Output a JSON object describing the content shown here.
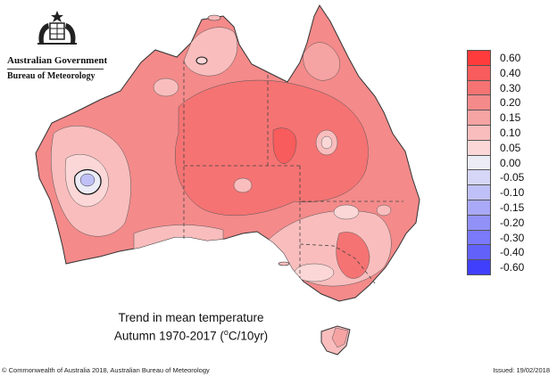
{
  "branding": {
    "org": "Australian Government",
    "agency": "Bureau of Meteorology",
    "crest_icon": "coat-of-arms-icon"
  },
  "title": {
    "line1": "Trend in mean temperature",
    "line2_prefix": "Autumn 1970-2017 (",
    "line2_unit_sup": "o",
    "line2_suffix": "C/10yr)"
  },
  "legend": {
    "items": [
      {
        "label": "0.60",
        "color": "#ff3b3b"
      },
      {
        "label": "0.40",
        "color": "#f85c5c"
      },
      {
        "label": "0.30",
        "color": "#f57373"
      },
      {
        "label": "0.20",
        "color": "#f48a8a"
      },
      {
        "label": "0.15",
        "color": "#f6a3a3"
      },
      {
        "label": "0.10",
        "color": "#f9bdbd"
      },
      {
        "label": "0.05",
        "color": "#fbd7d7"
      },
      {
        "label": "0.00",
        "color": "#ececf6"
      },
      {
        "label": "-0.05",
        "color": "#d6d6f6"
      },
      {
        "label": "-0.10",
        "color": "#c0c0f8"
      },
      {
        "label": "-0.15",
        "color": "#a9a9f8"
      },
      {
        "label": "-0.20",
        "color": "#9191f8"
      },
      {
        "label": "-0.30",
        "color": "#7a7afa"
      },
      {
        "label": "-0.40",
        "color": "#6262fb"
      },
      {
        "label": "-0.60",
        "color": "#4040fc"
      }
    ]
  },
  "footer": {
    "copyright": "© Commonwealth of Australia 2018, Australian Bureau of Meteorology",
    "issued": "Issued: 19/02/2018"
  }
}
